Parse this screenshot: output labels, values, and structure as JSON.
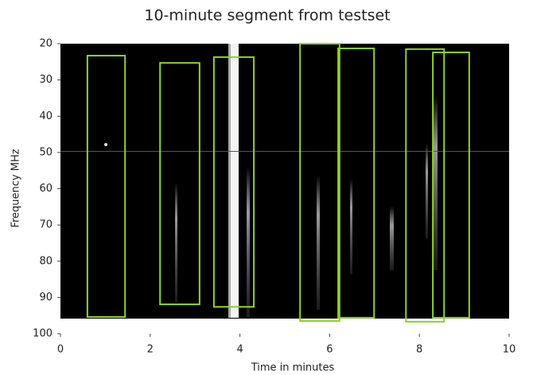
{
  "chart_data": {
    "type": "spectrogram",
    "title": "10-minute segment from testset",
    "x_label": "Time in minutes",
    "y_label": "Frequency MHz",
    "xlim": [
      0,
      10
    ],
    "xticks": [
      0,
      2,
      4,
      6,
      8,
      10
    ],
    "ylim": [
      100,
      20
    ],
    "yticks": [
      20,
      30,
      40,
      50,
      60,
      70,
      80,
      90,
      100
    ],
    "box_color": "#8fd32a",
    "boxes": [
      {
        "x0": 0.6,
        "x1": 1.44,
        "y0": 23.3,
        "y1": 95.4
      },
      {
        "x0": 2.22,
        "x1": 3.1,
        "y0": 25.3,
        "y1": 91.9
      },
      {
        "x0": 3.42,
        "x1": 4.31,
        "y0": 23.7,
        "y1": 92.6
      },
      {
        "x0": 5.34,
        "x1": 6.22,
        "y0": 20,
        "y1": 96.5
      },
      {
        "x0": 6.19,
        "x1": 6.99,
        "y0": 21.3,
        "y1": 95.6
      },
      {
        "x0": 7.7,
        "x1": 8.55,
        "y0": 21.5,
        "y1": 96.7
      },
      {
        "x0": 8.3,
        "x1": 9.11,
        "y0": 22.4,
        "y1": 95.6
      }
    ]
  }
}
